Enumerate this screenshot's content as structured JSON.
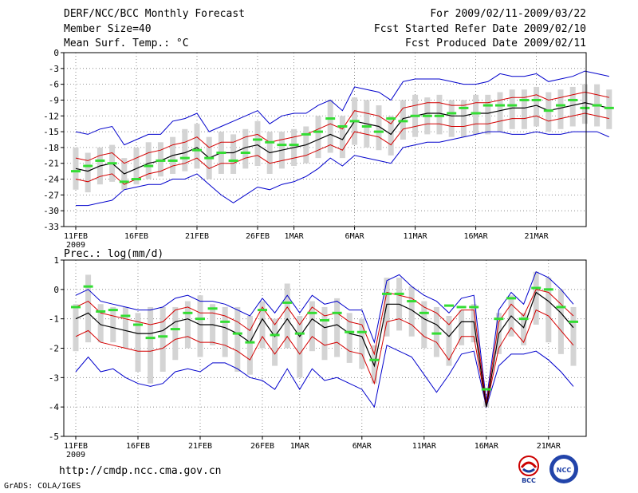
{
  "header": {
    "line1": "DERF/NCC/BCC Monthly Forecast",
    "line2": "Member Size=40",
    "line3": "Mean Surf. Temp.: °C",
    "right1": "For 2009/02/11-2009/03/22",
    "right2": "Fcst Started Refer Date 2009/02/10",
    "right3": "Fcst Produced Date 2009/02/11"
  },
  "prec_label": "Prec.: log(mm/d)",
  "footer": {
    "url": "http://cmdp.ncc.cma.gov.cn",
    "grads": "GrADS: COLA/IGES"
  },
  "logos": {
    "bcc": "BCC",
    "ncc": "NCC"
  },
  "colors": {
    "envelope": "#0000cc",
    "spread": "#d40000",
    "mean": "#000000",
    "box": "#d4d4d4",
    "obs": "#33dd33",
    "grid": "#777777"
  },
  "chart_data": [
    {
      "type": "line",
      "title": "Mean Surf. Temp.: °C",
      "ylim": [
        -33,
        0
      ],
      "yticks": [
        0,
        -3,
        -6,
        -9,
        -12,
        -15,
        -18,
        -21,
        -24,
        -27,
        -30,
        -33
      ],
      "xticks": [
        {
          "day": 0,
          "label": "11FEB",
          "sub": "2009"
        },
        {
          "day": 5,
          "label": "16FEB"
        },
        {
          "day": 10,
          "label": "21FEB"
        },
        {
          "day": 15,
          "label": "26FEB"
        },
        {
          "day": 18,
          "label": "1MAR"
        },
        {
          "day": 23,
          "label": "6MAR"
        },
        {
          "day": 28,
          "label": "11MAR"
        },
        {
          "day": 33,
          "label": "16MAR"
        },
        {
          "day": 38,
          "label": "21MAR"
        }
      ],
      "series": [
        {
          "name": "max",
          "values": [
            -15,
            -15.5,
            -14.5,
            -14,
            -17.5,
            -16.5,
            -15.5,
            -15.5,
            -13,
            -12.5,
            -11.5,
            -15,
            -14,
            -13,
            -12,
            -11,
            -13.5,
            -12,
            -11.5,
            -11.5,
            -10,
            -9,
            -11,
            -6.5,
            -7,
            -7.5,
            -9,
            -5.5,
            -5,
            -5,
            -5,
            -5.5,
            -6,
            -6,
            -5.5,
            -4,
            -4.5,
            -4.5,
            -4,
            -5.5,
            -5,
            -4.5,
            -3.5,
            -4,
            -4.5
          ]
        },
        {
          "name": "upper",
          "values": [
            -20,
            -20.5,
            -19.5,
            -19,
            -21,
            -20,
            -19,
            -18.5,
            -17.5,
            -17,
            -16,
            -18,
            -17,
            -17,
            -16,
            -15.5,
            -17,
            -16.5,
            -16,
            -15.5,
            -14.5,
            -13.5,
            -14.5,
            -11,
            -11.5,
            -12,
            -13.5,
            -10.5,
            -10,
            -9.5,
            -9.5,
            -10,
            -10,
            -9.5,
            -9.5,
            -9,
            -8.5,
            -8.5,
            -8,
            -9,
            -8.5,
            -8,
            -7.5,
            -8,
            -8.5
          ]
        },
        {
          "name": "mean",
          "values": [
            -22,
            -22.5,
            -21.5,
            -21,
            -23,
            -22,
            -21,
            -20.5,
            -19.5,
            -19,
            -18,
            -20,
            -19,
            -19,
            -18,
            -17.5,
            -19,
            -18.5,
            -18,
            -17.5,
            -16.5,
            -15.5,
            -16.5,
            -13,
            -13.5,
            -14,
            -15.5,
            -12.5,
            -12,
            -11.5,
            -11.5,
            -12,
            -12,
            -11.5,
            -11.5,
            -11,
            -10.5,
            -10.5,
            -10,
            -11,
            -10.5,
            -10,
            -9.5,
            -10,
            -10.5
          ]
        },
        {
          "name": "lower",
          "values": [
            -24,
            -24.5,
            -23.5,
            -23,
            -25,
            -24,
            -23,
            -22.5,
            -21.5,
            -21,
            -20,
            -22,
            -21,
            -21,
            -20,
            -19.5,
            -21,
            -20.5,
            -20,
            -19.5,
            -18.5,
            -17.5,
            -18.5,
            -15,
            -15.5,
            -16,
            -17.5,
            -14.5,
            -14,
            -13.5,
            -13.5,
            -14,
            -14,
            -13.5,
            -13.5,
            -13,
            -12.5,
            -12.5,
            -12,
            -13,
            -12.5,
            -12,
            -11.5,
            -12,
            -12.5
          ]
        },
        {
          "name": "min",
          "values": [
            -29,
            -29,
            -28.5,
            -28,
            -26,
            -25.5,
            -25,
            -25,
            -24,
            -24,
            -23,
            -25,
            -27,
            -28.5,
            -27,
            -25.5,
            -26,
            -25,
            -24.5,
            -23.5,
            -22,
            -20,
            -21.5,
            -19.5,
            -20,
            -20.5,
            -21,
            -18,
            -17.5,
            -17,
            -17,
            -16.5,
            -16,
            -15.5,
            -15,
            -15,
            -15.5,
            -15.5,
            -15,
            -15.5,
            -15.5,
            -15,
            -15,
            -15,
            -16
          ]
        },
        {
          "name": "box_top",
          "values": [
            -18,
            -19,
            -18,
            -17.5,
            -20,
            -18,
            -17,
            -17,
            -16,
            -14.5,
            -13.5,
            -16,
            -15,
            -15.5,
            -14.5,
            -13,
            -15,
            -15,
            -14.5,
            -14,
            -12,
            -9,
            -12,
            -8.5,
            -9,
            -10,
            -12,
            -9,
            -8,
            -8.5,
            -8,
            -9,
            -9,
            -8,
            -8,
            -7.5,
            -7,
            -7,
            -6.5,
            -7.5,
            -7,
            -6.5,
            -6,
            -6,
            -7
          ]
        },
        {
          "name": "box_bottom",
          "values": [
            -26,
            -26.5,
            -25,
            -24.5,
            -26,
            -25,
            -24,
            -23.5,
            -23,
            -22.5,
            -22,
            -24,
            -23,
            -23,
            -22,
            -21.5,
            -23,
            -22,
            -21.5,
            -21,
            -20,
            -19,
            -20,
            -17.5,
            -18,
            -18.5,
            -19.5,
            -16.5,
            -16,
            -15.5,
            -15.5,
            -16,
            -16,
            -15.5,
            -15.5,
            -15,
            -14.5,
            -14.5,
            -14,
            -15,
            -14.5,
            -14,
            -13.5,
            -14,
            -14.5
          ]
        },
        {
          "name": "observed",
          "values": [
            -22.5,
            -21.5,
            -20.5,
            -21,
            -24.5,
            -24,
            -21.5,
            -20.5,
            -20.5,
            -20,
            -18.5,
            -20,
            -19,
            -20.5,
            -19,
            -16.5,
            -17,
            -17.5,
            -17.5,
            -15.5,
            -15,
            -12.5,
            -14,
            -13,
            -14,
            -15,
            -12.5,
            -13,
            -12,
            -12,
            -12,
            -11.5,
            -10.5,
            -11.5,
            -10,
            -10,
            -10,
            -9,
            -9,
            -11,
            -10,
            -9,
            -10.5,
            -10,
            -10.5
          ]
        }
      ]
    },
    {
      "type": "line",
      "title": "Prec.: log(mm/d)",
      "ylim": [
        -5,
        1
      ],
      "yticks": [
        1,
        0,
        -1,
        -2,
        -3,
        -4,
        -5
      ],
      "xticks": [
        {
          "day": 0,
          "label": "11FEB",
          "sub": "2009"
        },
        {
          "day": 5,
          "label": "16FEB"
        },
        {
          "day": 10,
          "label": "21FEB"
        },
        {
          "day": 15,
          "label": "26FEB"
        },
        {
          "day": 18,
          "label": "1MAR"
        },
        {
          "day": 23,
          "label": "6MAR"
        },
        {
          "day": 28,
          "label": "11MAR"
        },
        {
          "day": 33,
          "label": "16MAR"
        },
        {
          "day": 38,
          "label": "21MAR"
        }
      ],
      "series": [
        {
          "name": "max",
          "values": [
            -0.2,
            0,
            -0.4,
            -0.5,
            -0.6,
            -0.7,
            -0.7,
            -0.6,
            -0.3,
            -0.2,
            -0.4,
            -0.4,
            -0.5,
            -0.7,
            -0.9,
            -0.3,
            -0.8,
            -0.2,
            -0.8,
            -0.2,
            -0.5,
            -0.4,
            -0.7,
            -0.7,
            -1.8,
            0.3,
            0.5,
            0.1,
            -0.2,
            -0.4,
            -0.8,
            -0.3,
            -0.2,
            -3.8,
            -0.7,
            -0.1,
            -0.5,
            0.6,
            0.4,
            0,
            -0.5
          ]
        },
        {
          "name": "upper",
          "values": [
            -0.6,
            -0.4,
            -0.8,
            -0.9,
            -1,
            -1.1,
            -1.2,
            -1.1,
            -0.7,
            -0.6,
            -0.8,
            -0.8,
            -0.9,
            -1.1,
            -1.4,
            -0.6,
            -1.2,
            -0.6,
            -1.2,
            -0.6,
            -0.9,
            -0.8,
            -1.1,
            -1.2,
            -2.2,
            -0.1,
            -0.2,
            -0.3,
            -0.6,
            -0.8,
            -1.2,
            -0.7,
            -0.7,
            -3.9,
            -1.1,
            -0.5,
            -0.9,
            0,
            -0.1,
            -0.5,
            -0.9
          ]
        },
        {
          "name": "mean",
          "values": [
            -1,
            -0.8,
            -1.2,
            -1.3,
            -1.4,
            -1.5,
            -1.5,
            -1.4,
            -1.1,
            -1,
            -1.2,
            -1.2,
            -1.3,
            -1.5,
            -1.8,
            -1,
            -1.6,
            -1,
            -1.6,
            -1,
            -1.3,
            -1.2,
            -1.5,
            -1.6,
            -2.6,
            -0.5,
            -0.5,
            -0.7,
            -1,
            -1.2,
            -1.6,
            -1.1,
            -1.1,
            -4,
            -1.5,
            -0.9,
            -1.3,
            -0.1,
            -0.4,
            -0.8,
            -1.3
          ]
        },
        {
          "name": "lower",
          "values": [
            -1.6,
            -1.4,
            -1.8,
            -1.9,
            -2,
            -2.1,
            -2.1,
            -2,
            -1.7,
            -1.6,
            -1.8,
            -1.8,
            -1.9,
            -2.1,
            -2.4,
            -1.6,
            -2.2,
            -1.6,
            -2.2,
            -1.6,
            -1.9,
            -1.8,
            -2.1,
            -2.2,
            -3.2,
            -1.1,
            -1,
            -1.2,
            -1.6,
            -1.8,
            -2.4,
            -1.6,
            -1.6,
            -4,
            -2,
            -1.3,
            -1.8,
            -0.7,
            -0.9,
            -1.4,
            -1.9
          ]
        },
        {
          "name": "min",
          "values": [
            -2.8,
            -2.3,
            -2.8,
            -2.7,
            -3,
            -3.2,
            -3.3,
            -3.2,
            -2.8,
            -2.7,
            -2.8,
            -2.5,
            -2.5,
            -2.7,
            -3,
            -3.1,
            -3.4,
            -2.7,
            -3.4,
            -2.7,
            -3.1,
            -3,
            -3.2,
            -3.4,
            -4,
            -1.9,
            -2.1,
            -2.3,
            -2.9,
            -3.5,
            -2.9,
            -2.2,
            -2.1,
            -4,
            -2.6,
            -2.2,
            -2.2,
            -2.1,
            -2.4,
            -2.8,
            -3.3
          ]
        },
        {
          "name": "box_top",
          "values": [
            -0.5,
            0.5,
            -0.5,
            -0.6,
            -0.6,
            -0.8,
            -0.6,
            -0.6,
            -0.6,
            -0.4,
            -0.2,
            -0.5,
            -0.6,
            -0.6,
            -0.9,
            -0.4,
            -1,
            0.2,
            -0.9,
            -0.4,
            -0.6,
            -0.3,
            -0.8,
            -1,
            -1.9,
            0.4,
            0.4,
            0.1,
            -0.4,
            -0.6,
            -0.9,
            -0.7,
            -0.5,
            -3.8,
            -0.8,
            -0.2,
            -0.8,
            0.6,
            0.4,
            0,
            -0.6
          ]
        },
        {
          "name": "box_bottom",
          "values": [
            -2.1,
            -1.8,
            -1.8,
            -1.8,
            -2,
            -2.8,
            -3.2,
            -2.8,
            -2.4,
            -2,
            -2.3,
            -1.9,
            -2.3,
            -2.8,
            -2.9,
            -2,
            -2.6,
            -2,
            -3,
            -2.1,
            -2.4,
            -2.3,
            -2.5,
            -2.7,
            -3.2,
            -1.6,
            -1.4,
            -1.6,
            -2,
            -2.3,
            -2.6,
            -1.9,
            -1.8,
            -4,
            -2.2,
            -1.6,
            -1.9,
            -1.2,
            -1.8,
            -2.2,
            -2.6
          ]
        },
        {
          "name": "observed",
          "values": [
            -0.6,
            0.1,
            -0.75,
            -0.7,
            -0.9,
            -1.2,
            -1.65,
            -1.6,
            -1.35,
            -0.8,
            -1,
            -0.65,
            -1.1,
            -1.5,
            -1.8,
            -0.7,
            -1.55,
            -0.45,
            -1.5,
            -0.8,
            -1.05,
            -0.8,
            -1.45,
            -1.45,
            -2.4,
            -0.15,
            -0.15,
            -0.4,
            -0.8,
            -1.5,
            -0.55,
            -0.6,
            -0.6,
            -3.4,
            -1,
            -0.3,
            -1,
            0.05,
            0,
            -0.6,
            -1.1
          ]
        }
      ]
    }
  ]
}
